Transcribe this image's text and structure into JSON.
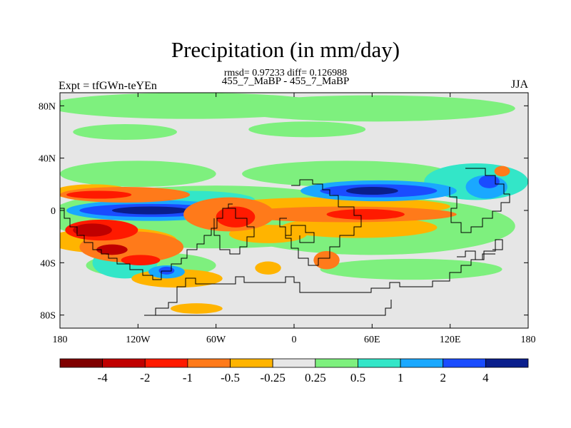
{
  "chart_data": {
    "type": "heatmap",
    "title": "Precipitation (in mm/day)",
    "stats": "rmsd= 0.97233 diff= 0.126988",
    "comparison": "455_7_MaBP - 455_7_MaBP",
    "left_label": "Expt = tfGWn-teYEn",
    "right_label": "JJA",
    "x_ticks": [
      {
        "lon": -180,
        "label": "180"
      },
      {
        "lon": -120,
        "label": "120W"
      },
      {
        "lon": -60,
        "label": "60W"
      },
      {
        "lon": 0,
        "label": "0"
      },
      {
        "lon": 60,
        "label": "60E"
      },
      {
        "lon": 120,
        "label": "120E"
      },
      {
        "lon": 180,
        "label": "180"
      }
    ],
    "y_ticks": [
      {
        "lat": 80,
        "label": "80N"
      },
      {
        "lat": 40,
        "label": "40N"
      },
      {
        "lat": 0,
        "label": "0"
      },
      {
        "lat": -40,
        "label": "40S"
      },
      {
        "lat": -80,
        "label": "80S"
      }
    ],
    "xlim": [
      -180,
      180
    ],
    "ylim": [
      -90,
      90
    ],
    "colorbar": {
      "colors": [
        "#7f0000",
        "#c00000",
        "#ff1a00",
        "#ff7a1a",
        "#ffb400",
        "#e6e6e6",
        "#7ef07e",
        "#33e6c8",
        "#1aa8ff",
        "#1a4cff",
        "#0a1e8c"
      ],
      "labels": [
        "-4",
        "-2",
        "-1",
        "-0.5",
        "-0.25",
        "0.25",
        "0.5",
        "1",
        "2",
        "4"
      ]
    },
    "regions": [
      {
        "level": 6,
        "lon": -80,
        "lat": 80,
        "rlon": 110,
        "rlat": 10
      },
      {
        "level": 6,
        "lon": 60,
        "lat": 78,
        "rlon": 110,
        "rlat": 10
      },
      {
        "level": 6,
        "lon": -130,
        "lat": 60,
        "rlon": 40,
        "rlat": 6
      },
      {
        "level": 6,
        "lon": 10,
        "lat": 62,
        "rlon": 45,
        "rlat": 6
      },
      {
        "level": 6,
        "lon": -120,
        "lat": 28,
        "rlon": 60,
        "rlat": 10
      },
      {
        "level": 6,
        "lon": 40,
        "lat": 28,
        "rlon": 80,
        "rlat": 10
      },
      {
        "level": 6,
        "lon": -60,
        "lat": -5,
        "rlon": 130,
        "rlat": 24
      },
      {
        "level": 6,
        "lon": 60,
        "lat": -12,
        "rlon": 110,
        "rlat": 22
      },
      {
        "level": 6,
        "lon": -110,
        "lat": -42,
        "rlon": 50,
        "rlat": 10
      },
      {
        "level": 6,
        "lon": 90,
        "lat": -45,
        "rlon": 70,
        "rlat": 8
      },
      {
        "level": 7,
        "lon": 140,
        "lat": 22,
        "rlon": 40,
        "rlat": 14
      },
      {
        "level": 7,
        "lon": -130,
        "lat": -40,
        "rlon": 25,
        "rlat": 12
      },
      {
        "level": 7,
        "lon": -80,
        "lat": 8,
        "rlon": 50,
        "rlat": 7
      },
      {
        "level": 4,
        "lon": -155,
        "lat": 14,
        "rlon": 30,
        "rlat": 6
      },
      {
        "level": 4,
        "lon": -140,
        "lat": -23,
        "rlon": 50,
        "rlat": 10
      },
      {
        "level": 4,
        "lon": 30,
        "lat": 3,
        "rlon": 90,
        "rlat": 7
      },
      {
        "level": 4,
        "lon": 50,
        "lat": -13,
        "rlon": 60,
        "rlat": 8
      },
      {
        "level": 4,
        "lon": -20,
        "lat": -18,
        "rlon": 30,
        "rlat": 7
      },
      {
        "level": 4,
        "lon": -90,
        "lat": -52,
        "rlon": 35,
        "rlat": 7
      },
      {
        "level": 4,
        "lon": -75,
        "lat": -75,
        "rlon": 20,
        "rlat": 4
      },
      {
        "level": 4,
        "lon": -20,
        "lat": -44,
        "rlon": 10,
        "rlat": 5
      },
      {
        "level": 8,
        "lon": 65,
        "lat": 15,
        "rlon": 60,
        "rlat": 8
      },
      {
        "level": 8,
        "lon": -110,
        "lat": 0,
        "rlon": 65,
        "rlat": 8
      },
      {
        "level": 8,
        "lon": 148,
        "lat": 18,
        "rlon": 16,
        "rlat": 9
      },
      {
        "level": 8,
        "lon": -98,
        "lat": -47,
        "rlon": 14,
        "rlat": 5
      },
      {
        "level": 9,
        "lon": 65,
        "lat": 15,
        "rlon": 45,
        "rlat": 5
      },
      {
        "level": 9,
        "lon": -110,
        "lat": 0,
        "rlon": 55,
        "rlat": 5
      },
      {
        "level": 9,
        "lon": 150,
        "lat": 22,
        "rlon": 8,
        "rlat": 5
      },
      {
        "level": 9,
        "lon": -98,
        "lat": -46,
        "rlon": 6,
        "rlat": 3
      },
      {
        "level": 10,
        "lon": -110,
        "lat": 0,
        "rlon": 30,
        "rlat": 3
      },
      {
        "level": 10,
        "lon": 60,
        "lat": 15,
        "rlon": 20,
        "rlat": 3
      },
      {
        "level": 3,
        "lon": -130,
        "lat": 12,
        "rlon": 50,
        "rlat": 6
      },
      {
        "level": 3,
        "lon": -50,
        "lat": -3,
        "rlon": 35,
        "rlat": 13
      },
      {
        "level": 3,
        "lon": 40,
        "lat": -3,
        "rlon": 85,
        "rlat": 6
      },
      {
        "level": 3,
        "lon": -125,
        "lat": -28,
        "rlon": 40,
        "rlat": 12
      },
      {
        "level": 3,
        "lon": 25,
        "lat": -38,
        "rlon": 10,
        "rlat": 7
      },
      {
        "level": 3,
        "lon": 160,
        "lat": 30,
        "rlon": 6,
        "rlat": 4
      },
      {
        "level": 2,
        "lon": -150,
        "lat": 12,
        "rlon": 25,
        "rlat": 3
      },
      {
        "level": 2,
        "lon": -148,
        "lat": -15,
        "rlon": 28,
        "rlat": 8
      },
      {
        "level": 2,
        "lon": 55,
        "lat": -3,
        "rlon": 30,
        "rlat": 4
      },
      {
        "level": 2,
        "lon": -45,
        "lat": -5,
        "rlon": 15,
        "rlat": 8
      },
      {
        "level": 2,
        "lon": -118,
        "lat": -38,
        "rlon": 15,
        "rlat": 4
      },
      {
        "level": 1,
        "lon": -155,
        "lat": -15,
        "rlon": 15,
        "rlat": 5
      },
      {
        "level": 1,
        "lon": -140,
        "lat": -30,
        "rlon": 12,
        "rlat": 4
      }
    ]
  }
}
